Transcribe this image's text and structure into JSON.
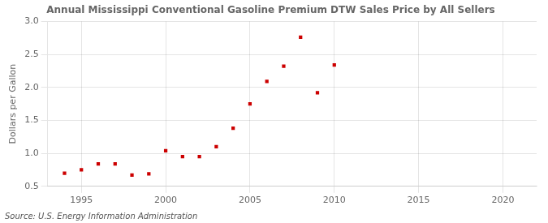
{
  "chart_data": {
    "type": "scatter",
    "title": "Annual Mississippi Conventional Gasoline Premium DTW Sales Price by All Sellers",
    "ylabel": "Dollars per Gallon",
    "source": "Source: U.S. Energy Information Administration",
    "x": [
      1994,
      1995,
      1996,
      1997,
      1998,
      1999,
      2000,
      2001,
      2002,
      2003,
      2004,
      2005,
      2006,
      2007,
      2008,
      2009,
      2010
    ],
    "values": [
      0.7,
      0.75,
      0.84,
      0.84,
      0.67,
      0.69,
      1.04,
      0.95,
      0.95,
      1.1,
      1.38,
      1.75,
      2.09,
      2.32,
      2.76,
      1.92,
      2.34
    ],
    "color": "#cc0000",
    "marker": "square",
    "xlim": [
      1993,
      2022
    ],
    "ylim": [
      0.5,
      3.0
    ],
    "xticks": [
      1995,
      2000,
      2005,
      2010,
      2015,
      2020
    ],
    "yticks": [
      0.5,
      {
        "value": 1.0,
        "label": "1.0"
      },
      1.5,
      {
        "value": 2.0,
        "label": "2.0"
      },
      2.5,
      {
        "value": 3.0,
        "label": "3.0"
      }
    ],
    "grid": true
  }
}
